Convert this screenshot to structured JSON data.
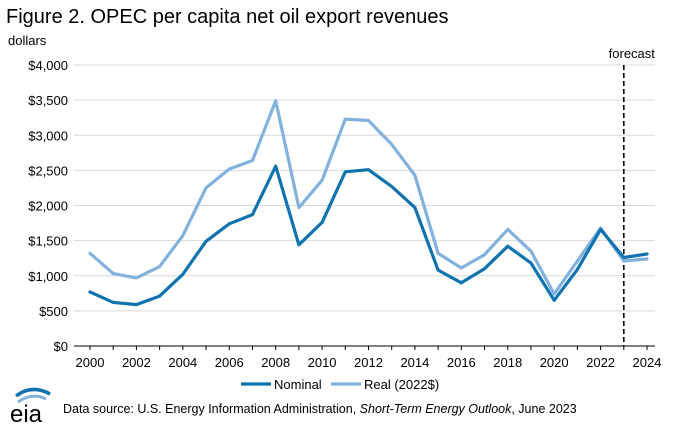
{
  "figure": {
    "title": "Figure 2. OPEC per capita net oil export revenues",
    "unit_label": "dollars",
    "forecast_label": "forecast"
  },
  "source": {
    "prefix": "Data source: U.S. Energy Information Administration, ",
    "publication": "Short-Term Energy Outlook",
    "suffix": ", June 2023"
  },
  "logo": {
    "text": "eia"
  },
  "chart_data": {
    "type": "line",
    "title": "Figure 2. OPEC per capita net oil export revenues",
    "ylabel": "dollars",
    "x": [
      2000,
      2001,
      2002,
      2003,
      2004,
      2005,
      2006,
      2007,
      2008,
      2009,
      2010,
      2011,
      2012,
      2013,
      2014,
      2015,
      2016,
      2017,
      2018,
      2019,
      2020,
      2021,
      2022,
      2023,
      2024
    ],
    "xticks": [
      "2000",
      "2002",
      "2004",
      "2006",
      "2008",
      "2010",
      "2012",
      "2014",
      "2016",
      "2018",
      "2020",
      "2022",
      "2024"
    ],
    "xlim": [
      2000,
      2024
    ],
    "ylim": [
      0,
      4000
    ],
    "yticks": [
      0,
      500,
      1000,
      1500,
      2000,
      2500,
      3000,
      3500,
      4000
    ],
    "ytick_labels": [
      "$0",
      "$500",
      "$1,000",
      "$1,500",
      "$2,000",
      "$2,500",
      "$3,000",
      "$3,500",
      "$4,000"
    ],
    "forecast_start": 2023,
    "grid": "horizontal",
    "legend": "bottom",
    "series": [
      {
        "name": "Nominal",
        "color": "#0f73b0",
        "values": [
          770,
          620,
          590,
          710,
          1020,
          1490,
          1740,
          1870,
          2560,
          1440,
          1760,
          2480,
          2510,
          2270,
          1970,
          1080,
          900,
          1100,
          1420,
          1180,
          650,
          1090,
          1660,
          1260,
          1310
        ]
      },
      {
        "name": "Real (2022$)",
        "color": "#82b1dc",
        "values": [
          1320,
          1030,
          970,
          1130,
          1570,
          2250,
          2520,
          2640,
          3490,
          1970,
          2360,
          3230,
          3210,
          2870,
          2430,
          1320,
          1110,
          1300,
          1660,
          1350,
          740,
          1210,
          1680,
          1210,
          1240
        ]
      }
    ]
  }
}
